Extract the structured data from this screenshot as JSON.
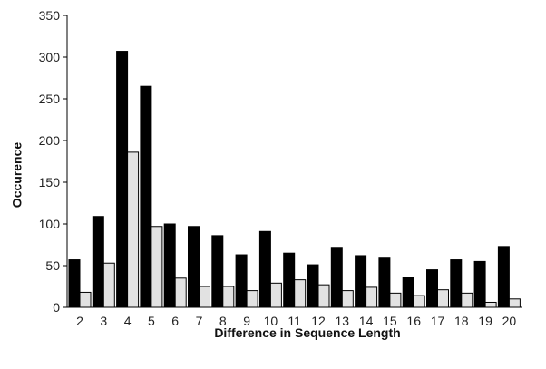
{
  "chart_data": {
    "type": "bar",
    "title": "",
    "xlabel": "Difference in Sequence Length",
    "ylabel": "Occurence",
    "categories": [
      "2",
      "3",
      "4",
      "5",
      "6",
      "7",
      "8",
      "9",
      "10",
      "11",
      "12",
      "13",
      "14",
      "15",
      "16",
      "17",
      "18",
      "19",
      "20"
    ],
    "series": [
      {
        "values": [
          57,
          109,
          307,
          265,
          100,
          97,
          86,
          63,
          91,
          65,
          51,
          72,
          62,
          59,
          36,
          45,
          57,
          55,
          73
        ],
        "color": "#000000"
      },
      {
        "values": [
          18,
          53,
          186,
          97,
          35,
          25,
          25,
          20,
          29,
          33,
          27,
          20,
          24,
          17,
          14,
          21,
          17,
          6,
          10
        ],
        "color": "#e2e2e2"
      }
    ],
    "ylim": [
      0,
      350
    ],
    "yticks": [
      0,
      50,
      100,
      150,
      200,
      250,
      300,
      350
    ],
    "grid": false,
    "legend": "none"
  }
}
